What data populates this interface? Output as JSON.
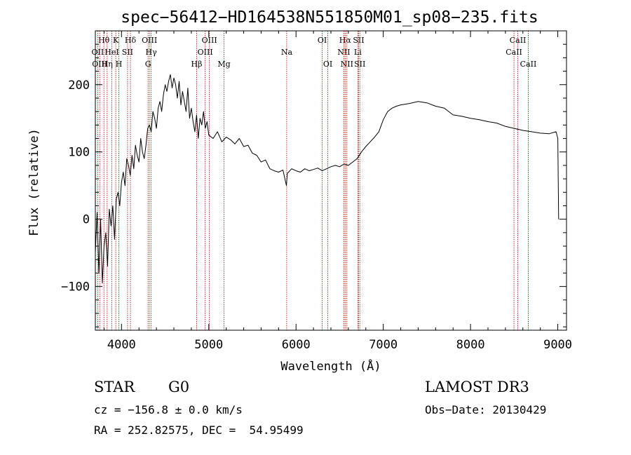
{
  "chart_data": {
    "type": "line",
    "title": "spec−56412−HD164538N551850M01_sp08−235.fits",
    "xlabel": "Wavelength (Å)",
    "ylabel": "Flux (relative)",
    "xlim": [
      3700,
      9100
    ],
    "ylim": [
      -165,
      280
    ],
    "xticks": [
      4000,
      5000,
      6000,
      7000,
      8000,
      9000
    ],
    "xtick_labels": [
      "4000",
      "5000",
      "6000",
      "7000",
      "8000",
      "9000"
    ],
    "yticks": [
      -100,
      0,
      100,
      200
    ],
    "ytick_labels": [
      "−100",
      "0",
      "100",
      "200"
    ],
    "grid": false,
    "series": [
      {
        "color": "#000000",
        "x": [
          3700,
          3720,
          3740,
          3760,
          3780,
          3800,
          3820,
          3840,
          3860,
          3880,
          3900,
          3920,
          3940,
          3960,
          3980,
          4000,
          4020,
          4040,
          4060,
          4080,
          4100,
          4120,
          4140,
          4160,
          4180,
          4200,
          4220,
          4240,
          4260,
          4280,
          4300,
          4320,
          4340,
          4360,
          4380,
          4400,
          4420,
          4440,
          4460,
          4480,
          4500,
          4520,
          4540,
          4560,
          4580,
          4600,
          4620,
          4640,
          4660,
          4680,
          4700,
          4720,
          4740,
          4760,
          4780,
          4800,
          4820,
          4840,
          4860,
          4880,
          4900,
          4920,
          4940,
          4960,
          4980,
          5000,
          5050,
          5100,
          5150,
          5200,
          5250,
          5300,
          5350,
          5400,
          5450,
          5500,
          5550,
          5600,
          5650,
          5700,
          5750,
          5800,
          5850,
          5890,
          5900,
          5950,
          6000,
          6050,
          6100,
          6150,
          6200,
          6250,
          6300,
          6350,
          6400,
          6450,
          6500,
          6550,
          6600,
          6650,
          6700,
          6750,
          6800,
          6850,
          6900,
          6950,
          7000,
          7050,
          7100,
          7150,
          7200,
          7300,
          7400,
          7500,
          7600,
          7700,
          7800,
          7900,
          8000,
          8100,
          8200,
          8300,
          8400,
          8500,
          8600,
          8700,
          8800,
          8900,
          8980,
          9000,
          9010
        ],
        "y": [
          -50,
          10,
          -80,
          0,
          -95,
          -40,
          -20,
          -70,
          15,
          -10,
          20,
          -30,
          30,
          40,
          20,
          55,
          70,
          50,
          90,
          80,
          65,
          95,
          75,
          110,
          95,
          85,
          120,
          100,
          90,
          110,
          135,
          140,
          130,
          160,
          150,
          135,
          165,
          175,
          160,
          185,
          200,
          190,
          205,
          215,
          195,
          210,
          200,
          180,
          205,
          170,
          190,
          175,
          160,
          195,
          150,
          165,
          145,
          130,
          155,
          120,
          150,
          140,
          160,
          135,
          145,
          125,
          120,
          130,
          115,
          122,
          118,
          112,
          120,
          108,
          110,
          98,
          95,
          85,
          88,
          75,
          72,
          70,
          73,
          50,
          68,
          75,
          72,
          70,
          75,
          72,
          74,
          76,
          72,
          75,
          78,
          80,
          78,
          82,
          80,
          85,
          90,
          100,
          108,
          115,
          122,
          130,
          148,
          160,
          165,
          168,
          170,
          172,
          175,
          173,
          168,
          165,
          155,
          153,
          150,
          148,
          145,
          143,
          138,
          135,
          132,
          130,
          128,
          127,
          130,
          120,
          0
        ]
      }
    ],
    "line_markers": [
      {
        "label": "Hθ",
        "x": 3798,
        "row": 0
      },
      {
        "label": "K",
        "x": 3934,
        "row": 0
      },
      {
        "label": "Hδ",
        "x": 4102,
        "row": 0
      },
      {
        "label": "OIII",
        "x": 4320,
        "row": 0
      },
      {
        "label": "OIII",
        "x": 5007,
        "row": 0
      },
      {
        "label": "OI",
        "x": 6300,
        "row": 0
      },
      {
        "label": "Hα",
        "x": 6563,
        "row": 0
      },
      {
        "label": "SII",
        "x": 6717,
        "row": 0
      },
      {
        "label": "CaII",
        "x": 8542,
        "row": 0
      },
      {
        "label": "OII",
        "x": 3727,
        "row": 1
      },
      {
        "label": "HeI",
        "x": 3889,
        "row": 1
      },
      {
        "label": "SII",
        "x": 4069,
        "row": 1
      },
      {
        "label": "Hγ",
        "x": 4340,
        "row": 1
      },
      {
        "label": "OIII",
        "x": 4959,
        "row": 1
      },
      {
        "label": "Na",
        "x": 5893,
        "row": 1
      },
      {
        "label": "NII",
        "x": 6548,
        "row": 1
      },
      {
        "label": "Li",
        "x": 6708,
        "row": 1
      },
      {
        "label": "CaII",
        "x": 8498,
        "row": 1
      },
      {
        "label": "OIII",
        "x": 3750,
        "row": 2
      },
      {
        "label": "Hη",
        "x": 3835,
        "row": 2
      },
      {
        "label": "H",
        "x": 3970,
        "row": 2
      },
      {
        "label": "G",
        "x": 4304,
        "row": 2
      },
      {
        "label": "Hβ",
        "x": 4861,
        "row": 2
      },
      {
        "label": "Mg",
        "x": 5175,
        "row": 2
      },
      {
        "label": "OI",
        "x": 6364,
        "row": 2
      },
      {
        "label": "NII",
        "x": 6583,
        "row": 2
      },
      {
        "label": "SII",
        "x": 6731,
        "row": 2
      },
      {
        "label": "CaII",
        "x": 8662,
        "row": 2
      }
    ]
  },
  "info": {
    "class_label": "STAR",
    "subclass": "G0",
    "survey": "LAMOST DR3",
    "cz": "cz = −156.8 ± 0.0 km/s",
    "obs_date": "Obs−Date: 20130429",
    "coords": "RA = 252.82575, DEC =  54.95499"
  }
}
